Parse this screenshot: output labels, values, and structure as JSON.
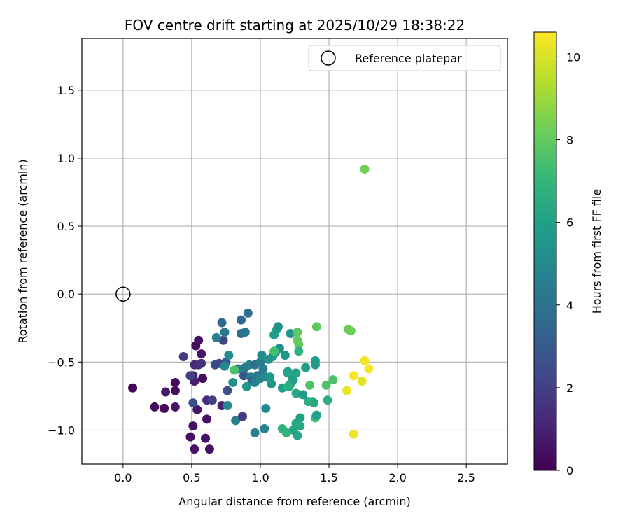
{
  "chart_data": {
    "type": "scatter",
    "title": "FOV centre drift starting at 2025/10/29 18:38:22",
    "xlabel": "Angular distance from reference (arcmin)",
    "ylabel": "Rotation from reference (arcmin)",
    "xlim": [
      -0.3,
      2.8
    ],
    "ylim": [
      -1.25,
      1.88
    ],
    "xticks": [
      0.0,
      0.5,
      1.0,
      1.5,
      2.0,
      2.5
    ],
    "xtick_labels": [
      "0.0",
      "0.5",
      "1.0",
      "1.5",
      "2.0",
      "2.5"
    ],
    "yticks": [
      -1.0,
      -0.5,
      0.0,
      0.5,
      1.0,
      1.5
    ],
    "ytick_labels": [
      "−1.0",
      "−0.5",
      "0.0",
      "0.5",
      "1.0",
      "1.5"
    ],
    "grid": true,
    "legend": {
      "position": "top-right",
      "entries": [
        {
          "label": "Reference platepar",
          "marker": "open-circle"
        }
      ]
    },
    "reference_point": {
      "x": 0.0,
      "y": 0.0
    },
    "colorbar": {
      "label": "Hours from first FF file",
      "colormap": "viridis",
      "range": [
        0,
        10.6
      ],
      "ticks": [
        0,
        2,
        4,
        6,
        8,
        10
      ],
      "tick_labels": [
        "0",
        "2",
        "4",
        "6",
        "8",
        "10"
      ],
      "stops": [
        "#440154",
        "#482878",
        "#3e4a89",
        "#31688e",
        "#26828e",
        "#1f9e89",
        "#35b779",
        "#6ece58",
        "#b5de2b",
        "#fde725"
      ]
    },
    "points_columns": [
      "x",
      "y",
      "hours"
    ],
    "points": [
      [
        0.07,
        -0.69,
        0.1
      ],
      [
        0.23,
        -0.83,
        0.3
      ],
      [
        0.3,
        -0.84,
        0.2
      ],
      [
        0.31,
        -0.72,
        0.8
      ],
      [
        0.38,
        -0.65,
        0.3
      ],
      [
        0.38,
        -0.71,
        0.4
      ],
      [
        0.38,
        -0.83,
        0.6
      ],
      [
        0.49,
        -1.05,
        0.4
      ],
      [
        0.51,
        -0.97,
        0.5
      ],
      [
        0.52,
        -1.14,
        0.5
      ],
      [
        0.53,
        -0.38,
        0.3
      ],
      [
        0.55,
        -0.34,
        0.5
      ],
      [
        0.57,
        -0.44,
        0.6
      ],
      [
        0.54,
        -0.85,
        0.6
      ],
      [
        0.58,
        -0.62,
        0.4
      ],
      [
        0.6,
        -1.06,
        0.5
      ],
      [
        0.61,
        -0.92,
        0.5
      ],
      [
        0.63,
        -1.14,
        0.5
      ],
      [
        0.52,
        -0.64,
        0.8
      ],
      [
        0.51,
        -0.6,
        1.1
      ],
      [
        0.44,
        -0.46,
        1.8
      ],
      [
        0.49,
        -0.6,
        2.0
      ],
      [
        0.52,
        -0.52,
        1.2
      ],
      [
        0.55,
        -0.52,
        1.4
      ],
      [
        0.57,
        -0.51,
        1.6
      ],
      [
        0.61,
        -0.78,
        1.3
      ],
      [
        0.65,
        -0.78,
        2.0
      ],
      [
        0.51,
        -0.8,
        2.6
      ],
      [
        0.67,
        -0.52,
        2.4
      ],
      [
        0.7,
        -0.51,
        2.2
      ],
      [
        0.72,
        -0.82,
        1.0
      ],
      [
        0.73,
        -0.34,
        2.3
      ],
      [
        0.75,
        -0.5,
        2.8
      ],
      [
        0.76,
        -0.71,
        2.6
      ],
      [
        0.72,
        -0.21,
        3.6
      ],
      [
        0.74,
        -0.28,
        4.2
      ],
      [
        0.68,
        -0.32,
        4.5
      ],
      [
        0.74,
        -0.53,
        5.0
      ],
      [
        0.77,
        -0.45,
        5.2
      ],
      [
        0.76,
        -0.82,
        5.0
      ],
      [
        0.8,
        -0.65,
        5.3
      ],
      [
        0.82,
        -0.93,
        4.6
      ],
      [
        0.84,
        -0.55,
        4.8
      ],
      [
        0.86,
        -0.19,
        3.6
      ],
      [
        0.86,
        -0.29,
        3.8
      ],
      [
        0.87,
        -0.9,
        1.8
      ],
      [
        0.88,
        -0.6,
        2.8
      ],
      [
        0.89,
        -0.28,
        4.2
      ],
      [
        0.91,
        -0.14,
        3.8
      ],
      [
        0.89,
        -0.54,
        4.2
      ],
      [
        0.92,
        -0.52,
        4.6
      ],
      [
        0.93,
        -0.61,
        4.4
      ],
      [
        0.94,
        -0.64,
        3.2
      ],
      [
        0.9,
        -0.68,
        5.5
      ],
      [
        0.96,
        -0.52,
        3.8
      ],
      [
        0.96,
        -1.02,
        4.6
      ],
      [
        0.96,
        -0.65,
        4.6
      ],
      [
        0.98,
        -0.6,
        4.4
      ],
      [
        0.99,
        -0.6,
        4.0
      ],
      [
        1.0,
        -0.5,
        4.4
      ],
      [
        1.02,
        -0.55,
        4.5
      ],
      [
        1.01,
        -0.45,
        5.0
      ],
      [
        1.03,
        -0.99,
        4.6
      ],
      [
        1.04,
        -0.61,
        5.0
      ],
      [
        1.04,
        -0.84,
        5.0
      ],
      [
        1.06,
        -0.48,
        5.4
      ],
      [
        1.07,
        -0.61,
        5.6
      ],
      [
        1.08,
        -0.66,
        5.6
      ],
      [
        1.09,
        -0.46,
        5.6
      ],
      [
        1.1,
        -0.3,
        5.8
      ],
      [
        1.11,
        -0.43,
        5.8
      ],
      [
        1.12,
        -0.26,
        5.8
      ],
      [
        1.13,
        -0.24,
        5.4
      ],
      [
        1.14,
        -0.4,
        5.2
      ],
      [
        1.16,
        -0.69,
        5.8
      ],
      [
        1.18,
        -0.45,
        5.6
      ],
      [
        1.2,
        -0.57,
        5.6
      ],
      [
        1.2,
        -0.68,
        6.8
      ],
      [
        1.22,
        -0.66,
        6.4
      ],
      [
        1.22,
        -0.29,
        5.5
      ],
      [
        1.23,
        -0.6,
        6.0
      ],
      [
        1.24,
        -0.63,
        6.0
      ],
      [
        1.24,
        -1.0,
        6.2
      ],
      [
        1.26,
        -0.58,
        6.1
      ],
      [
        1.26,
        -0.73,
        6.3
      ],
      [
        1.26,
        -0.95,
        6.4
      ],
      [
        1.27,
        -1.04,
        6.2
      ],
      [
        1.27,
        -0.34,
        8.0
      ],
      [
        1.27,
        -0.28,
        7.9
      ],
      [
        1.28,
        -0.37,
        8.0
      ],
      [
        1.28,
        -0.42,
        6.8
      ],
      [
        1.29,
        -0.91,
        6.0
      ],
      [
        1.29,
        -0.97,
        6.4
      ],
      [
        1.31,
        -0.74,
        5.8
      ],
      [
        1.33,
        -0.54,
        6.0
      ],
      [
        1.35,
        -0.79,
        6.6
      ],
      [
        1.36,
        -0.67,
        7.6
      ],
      [
        1.38,
        -0.79,
        7.0
      ],
      [
        1.39,
        -0.8,
        6.4
      ],
      [
        1.4,
        -0.52,
        5.8
      ],
      [
        1.4,
        -0.49,
        5.8
      ],
      [
        1.4,
        -0.91,
        7.2
      ],
      [
        1.41,
        -0.89,
        6.0
      ],
      [
        1.41,
        -0.24,
        7.9
      ],
      [
        1.48,
        -0.67,
        7.6
      ],
      [
        1.49,
        -0.78,
        6.6
      ],
      [
        1.53,
        -0.63,
        7.6
      ],
      [
        1.63,
        -0.71,
        10.3
      ],
      [
        1.64,
        -0.26,
        8.2
      ],
      [
        1.66,
        -0.27,
        8.2
      ],
      [
        1.68,
        -1.03,
        10.3
      ],
      [
        1.68,
        -0.6,
        10.5
      ],
      [
        1.74,
        -0.64,
        10.2
      ],
      [
        1.76,
        0.92,
        8.3
      ],
      [
        1.76,
        -0.49,
        10.4
      ],
      [
        1.79,
        -0.55,
        10.5
      ],
      [
        1.2,
        -0.58,
        6.2
      ],
      [
        1.21,
        -0.68,
        6.6
      ],
      [
        1.1,
        -0.42,
        7.4
      ],
      [
        0.81,
        -0.56,
        7.6
      ],
      [
        1.16,
        -0.99,
        6.8
      ],
      [
        1.19,
        -1.02,
        6.9
      ],
      [
        1.0,
        -0.62,
        4.9
      ]
    ]
  }
}
